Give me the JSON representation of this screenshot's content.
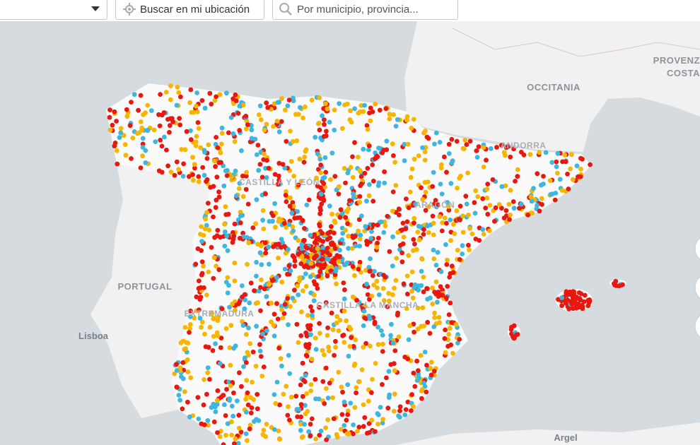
{
  "toolbar": {
    "location_button": "Buscar en mi ubicación",
    "search_placeholder": "Por municipio, provincia..."
  },
  "map_labels": [
    "PROVENZ",
    "COSTA",
    "OCCITANIA",
    "ANDORRA",
    "PORTUGAL",
    "Lisboa",
    "Argel",
    "CASTILLA Y LEÓN",
    "ARAGÓN",
    "EXTREMADURA",
    "CASTILLA-LA MANCHA"
  ]
}
